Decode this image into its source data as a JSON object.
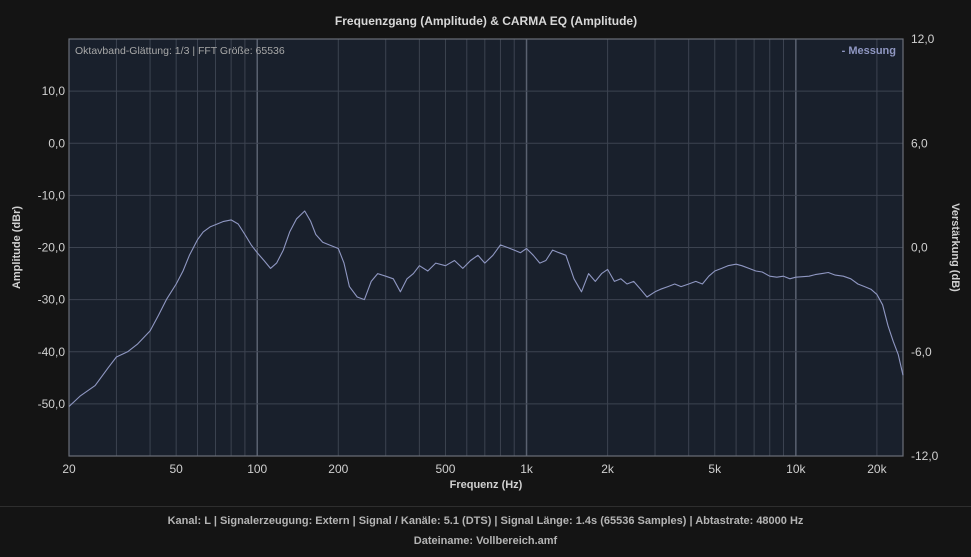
{
  "chart_data": {
    "type": "line",
    "title": "Frequenzgang (Amplitude) & CARMA EQ (Amplitude)",
    "xlabel": "Frequenz (Hz)",
    "ylabel": "Amplitude (dBr)",
    "y2label": "Verstärkung (dB)",
    "xscale": "log",
    "xlim": [
      20,
      25000
    ],
    "ylim": [
      -60,
      20
    ],
    "y2lim": [
      -12,
      12
    ],
    "xticks": [
      20,
      50,
      100,
      200,
      500,
      1000,
      2000,
      5000,
      10000,
      20000
    ],
    "xtick_labels": [
      "20",
      "50",
      "100",
      "200",
      "500",
      "1k",
      "2k",
      "5k",
      "10k",
      "20k"
    ],
    "yticks": [
      10,
      0,
      -10,
      -20,
      -30,
      -40,
      -50
    ],
    "ytick_labels": [
      "10,0",
      "0,0",
      "-10,0",
      "-20,0",
      "-30,0",
      "-40,0",
      "-50,0"
    ],
    "y2ticks": [
      12,
      6,
      0,
      -6,
      -12
    ],
    "y2tick_labels": [
      "12,0",
      "6,0",
      "0,0",
      "-6,0",
      "-12,0"
    ],
    "grid": true,
    "annotation": "Oktavband-Glättung: 1/3 | FFT Größe: 65536",
    "legend_position": "top-right",
    "series": [
      {
        "name": "Messung",
        "color": "#8f97c2",
        "x": [
          20,
          22,
          25,
          28,
          30,
          33,
          36,
          40,
          43,
          46,
          50,
          53,
          56,
          60,
          63,
          67,
          71,
          75,
          80,
          85,
          90,
          95,
          100,
          106,
          112,
          118,
          125,
          132,
          140,
          150,
          158,
          165,
          175,
          185,
          200,
          210,
          220,
          235,
          250,
          265,
          280,
          300,
          320,
          340,
          360,
          380,
          400,
          430,
          460,
          500,
          540,
          580,
          620,
          660,
          700,
          750,
          800,
          850,
          900,
          950,
          1000,
          1060,
          1120,
          1180,
          1250,
          1320,
          1400,
          1500,
          1600,
          1700,
          1800,
          1900,
          2000,
          2120,
          2240,
          2360,
          2500,
          2650,
          2800,
          3000,
          3150,
          3350,
          3550,
          3750,
          4000,
          4250,
          4500,
          4750,
          5000,
          5300,
          5600,
          6000,
          6300,
          6700,
          7100,
          7500,
          8000,
          8500,
          9000,
          9500,
          10000,
          10600,
          11200,
          11800,
          12500,
          13200,
          14000,
          15000,
          16000,
          17000,
          18000,
          19000,
          20000,
          21000,
          22000,
          23000,
          24000,
          25000
        ],
        "y": [
          -50.5,
          -48.5,
          -46.5,
          -43,
          -41,
          -40,
          -38.5,
          -36,
          -33,
          -30,
          -27,
          -24.5,
          -21.5,
          -18.5,
          -17,
          -16,
          -15.5,
          -15,
          -14.7,
          -15.5,
          -17.5,
          -19.5,
          -21,
          -22.5,
          -24,
          -23,
          -20.5,
          -17,
          -14.5,
          -13,
          -15,
          -17.5,
          -19,
          -19.5,
          -20.2,
          -23,
          -27.5,
          -29.5,
          -30,
          -26.5,
          -25,
          -25.5,
          -26,
          -28.5,
          -26,
          -25,
          -23.5,
          -24.5,
          -23,
          -23.5,
          -22.5,
          -24,
          -22.5,
          -21.5,
          -23,
          -21.5,
          -19.5,
          -20,
          -20.5,
          -21,
          -20.2,
          -21.5,
          -23,
          -22.5,
          -20.5,
          -21,
          -21.5,
          -26,
          -28.5,
          -25,
          -26.5,
          -25,
          -24.2,
          -26.5,
          -26,
          -27,
          -26.5,
          -28,
          -29.5,
          -28.5,
          -28,
          -27.5,
          -27,
          -27.5,
          -27,
          -26.5,
          -27,
          -25.5,
          -24.5,
          -24,
          -23.5,
          -23.2,
          -23.5,
          -24,
          -24.5,
          -24.7,
          -25.5,
          -25.7,
          -25.5,
          -26,
          -25.7,
          -25.6,
          -25.5,
          -25.2,
          -25,
          -24.8,
          -25.3,
          -25.5,
          -26,
          -27,
          -27.5,
          -28,
          -29,
          -31,
          -35,
          -38,
          -40.5,
          -44.5
        ]
      }
    ]
  },
  "footer": {
    "line1": "Kanal: L  |  Signalerzeugung: Extern   |  Signal / Kanäle: 5.1 (DTS)  |  Signal Länge: 1.4s (65536 Samples)  |  Abtastrate: 48000 Hz",
    "line2": "Dateiname: Vollbereich.amf"
  },
  "colors": {
    "background": "#141414",
    "plot_background": "#19202c",
    "grid": "#3c4350",
    "series": "#8f97c2",
    "legend": "#8f97c2"
  }
}
